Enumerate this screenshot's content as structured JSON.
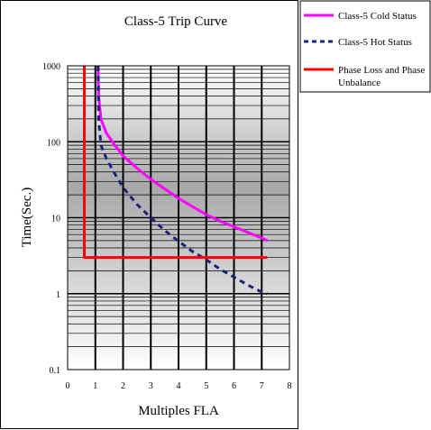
{
  "chart_data": {
    "type": "line",
    "title": "Class-5 Trip Curve",
    "xlabel": "Multiples FLA",
    "ylabel": "Time(Sec.)",
    "xlim": [
      0,
      8
    ],
    "ylim": [
      0.1,
      1000
    ],
    "yscale": "log",
    "grid": true,
    "legend_position": "top-right-outside",
    "x_ticks": [
      "0",
      "1",
      "2",
      "3",
      "4",
      "5",
      "6",
      "7",
      "8"
    ],
    "y_ticks": [
      "0.1",
      "1",
      "10",
      "100",
      "1000"
    ],
    "series": [
      {
        "name": "Class-5 Cold Status",
        "color": "#ff00ff",
        "style": "solid",
        "x": [
          1.1,
          1.12,
          1.2,
          1.4,
          1.7,
          2.0,
          2.5,
          3.0,
          3.5,
          4.0,
          4.5,
          5.0,
          5.5,
          6.0,
          6.5,
          7.0,
          7.2
        ],
        "y": [
          1000,
          400,
          200,
          130,
          90,
          65,
          45,
          32,
          24,
          18,
          14,
          11,
          9,
          7.6,
          6.4,
          5.4,
          5
        ]
      },
      {
        "name": "Class-5 Hot Status",
        "color": "#1a237e",
        "style": "dashed",
        "x": [
          1.1,
          1.12,
          1.2,
          1.4,
          1.7,
          2.0,
          2.5,
          3.0,
          3.5,
          4.0,
          4.5,
          5.0,
          5.5,
          6.0,
          6.5,
          7.0,
          7.2
        ],
        "y": [
          1000,
          200,
          90,
          60,
          38,
          25,
          15,
          10,
          6.8,
          4.9,
          3.6,
          2.8,
          2.1,
          1.65,
          1.3,
          1.05,
          1
        ]
      },
      {
        "name": "Phase Loss and Phase Unbalance",
        "color": "#ff0000",
        "style": "solid",
        "x": [
          0.6,
          0.6,
          7.2
        ],
        "y": [
          1000,
          3,
          3
        ]
      }
    ]
  }
}
